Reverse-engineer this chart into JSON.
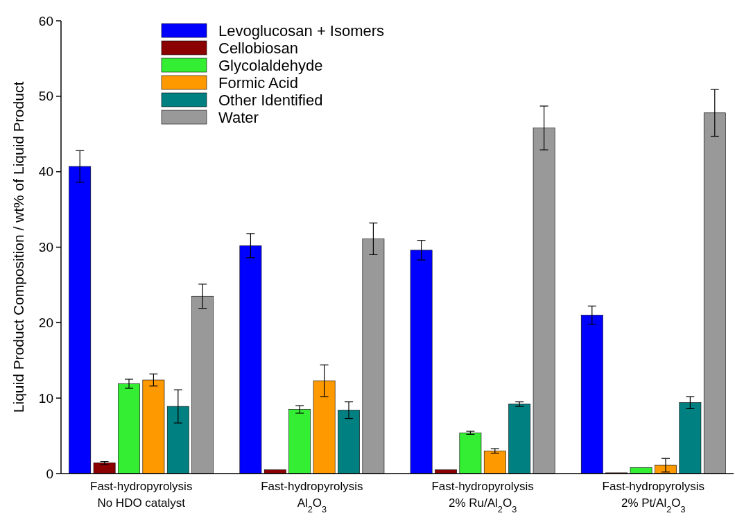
{
  "chart_data": {
    "type": "bar",
    "ylabel": "Liquid Product Composition / wt% of Liquid Product",
    "categories": [
      "Fast-hydropyrolysis\nNo HDO catalyst",
      "Fast-hydropyrolysis\nAl$_{2}$O$_{3}$",
      "Fast-hydropyrolysis\n2% Ru/Al$_{2}$O$_{3}$",
      "Fast-hydropyrolysis\n2% Pt/Al$_{2}$O$_{3}$"
    ],
    "series": [
      {
        "name": "Levoglucosan + Isomers",
        "color": "#0000ff",
        "values": [
          40.7,
          30.2,
          29.6,
          21.0
        ],
        "errors": [
          2.1,
          1.6,
          1.3,
          1.2
        ]
      },
      {
        "name": "Cellobiosan",
        "color": "#8b0000",
        "values": [
          1.4,
          0.5,
          0.5,
          0.1
        ],
        "errors": [
          0.2,
          null,
          null,
          null
        ]
      },
      {
        "name": "Glycolaldehyde",
        "color": "#33ee33",
        "values": [
          11.9,
          8.5,
          5.4,
          0.8
        ],
        "errors": [
          0.6,
          0.5,
          0.2,
          null
        ]
      },
      {
        "name": "Formic Acid",
        "color": "#ff9900",
        "values": [
          12.4,
          12.3,
          3.0,
          1.1
        ],
        "errors": [
          0.8,
          2.1,
          0.3,
          0.9
        ]
      },
      {
        "name": "Other Identified",
        "color": "#008080",
        "values": [
          8.9,
          8.4,
          9.2,
          9.4
        ],
        "errors": [
          2.2,
          1.1,
          0.3,
          0.8
        ]
      },
      {
        "name": "Water",
        "color": "#999999",
        "values": [
          23.5,
          31.1,
          45.8,
          47.8
        ],
        "errors": [
          1.6,
          2.1,
          2.9,
          3.1
        ]
      }
    ],
    "ylim": [
      0,
      60
    ],
    "yticks": [
      0,
      10,
      20,
      30,
      40,
      50,
      60
    ],
    "legend": "top"
  }
}
